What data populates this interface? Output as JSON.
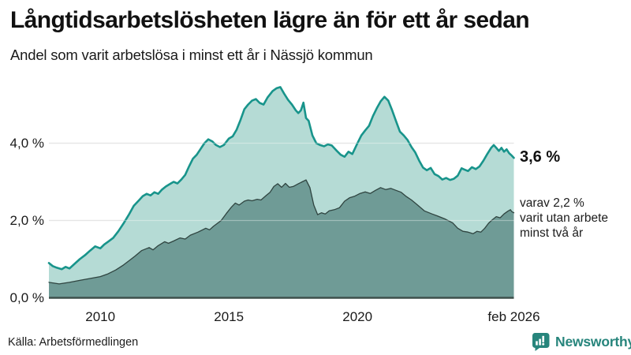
{
  "header": {
    "title": "Långtidsarbetslösheten lägre än för ett år sedan",
    "subtitle": "Andel som varit arbetslösa i minst ett år i Nässjö kommun"
  },
  "chart_data": {
    "type": "area",
    "title": "Långtidsarbetslösheten lägre än för ett år sedan",
    "subtitle": "Andel som varit arbetslösa i minst ett år i Nässjö kommun",
    "x_range": [
      2008.0,
      2026.083
    ],
    "ylim": [
      0,
      5.8
    ],
    "grid": "horizontal",
    "colors": {
      "line_1year": "#18948b",
      "fill_1year": "#b5dbd5",
      "line_2year": "#2f4440",
      "fill_2year": "#6f9b96",
      "gridline": "#d8d8d8",
      "baseline": "#3e504c"
    },
    "y_ticks": [
      {
        "label": "0,0 %",
        "value": 0
      },
      {
        "label": "2,0 %",
        "value": 2
      },
      {
        "label": "4,0 %",
        "value": 4
      }
    ],
    "x_ticks": [
      {
        "label": "2010",
        "year": 2010
      },
      {
        "label": "2015",
        "year": 2015
      },
      {
        "label": "2020",
        "year": 2020
      },
      {
        "label": "feb 2026",
        "year": 2026.083
      }
    ],
    "series": [
      {
        "name": "arbetslösa minst ett år",
        "last_value": 3.6,
        "points": [
          [
            2008.0,
            0.9
          ],
          [
            2008.15,
            0.82
          ],
          [
            2008.3,
            0.78
          ],
          [
            2008.5,
            0.74
          ],
          [
            2008.65,
            0.8
          ],
          [
            2008.8,
            0.76
          ],
          [
            2009.0,
            0.88
          ],
          [
            2009.2,
            1.0
          ],
          [
            2009.4,
            1.1
          ],
          [
            2009.6,
            1.22
          ],
          [
            2009.8,
            1.33
          ],
          [
            2010.0,
            1.28
          ],
          [
            2010.15,
            1.38
          ],
          [
            2010.3,
            1.45
          ],
          [
            2010.5,
            1.55
          ],
          [
            2010.7,
            1.72
          ],
          [
            2010.9,
            1.92
          ],
          [
            2011.1,
            2.14
          ],
          [
            2011.3,
            2.38
          ],
          [
            2011.5,
            2.52
          ],
          [
            2011.65,
            2.63
          ],
          [
            2011.8,
            2.69
          ],
          [
            2011.95,
            2.65
          ],
          [
            2012.1,
            2.73
          ],
          [
            2012.25,
            2.69
          ],
          [
            2012.4,
            2.8
          ],
          [
            2012.55,
            2.88
          ],
          [
            2012.7,
            2.94
          ],
          [
            2012.85,
            3.0
          ],
          [
            2013.0,
            2.96
          ],
          [
            2013.15,
            3.06
          ],
          [
            2013.3,
            3.18
          ],
          [
            2013.45,
            3.4
          ],
          [
            2013.6,
            3.6
          ],
          [
            2013.75,
            3.7
          ],
          [
            2013.9,
            3.85
          ],
          [
            2014.05,
            4.0
          ],
          [
            2014.2,
            4.1
          ],
          [
            2014.35,
            4.05
          ],
          [
            2014.5,
            3.95
          ],
          [
            2014.65,
            3.9
          ],
          [
            2014.8,
            3.95
          ],
          [
            2015.0,
            4.12
          ],
          [
            2015.15,
            4.18
          ],
          [
            2015.3,
            4.35
          ],
          [
            2015.45,
            4.6
          ],
          [
            2015.6,
            4.88
          ],
          [
            2015.75,
            5.0
          ],
          [
            2015.9,
            5.1
          ],
          [
            2016.05,
            5.14
          ],
          [
            2016.2,
            5.04
          ],
          [
            2016.35,
            5.0
          ],
          [
            2016.5,
            5.18
          ],
          [
            2016.7,
            5.35
          ],
          [
            2016.85,
            5.42
          ],
          [
            2017.0,
            5.45
          ],
          [
            2017.15,
            5.28
          ],
          [
            2017.3,
            5.12
          ],
          [
            2017.45,
            5.0
          ],
          [
            2017.6,
            4.85
          ],
          [
            2017.7,
            4.78
          ],
          [
            2017.8,
            4.85
          ],
          [
            2017.9,
            5.05
          ],
          [
            2018.0,
            4.65
          ],
          [
            2018.1,
            4.58
          ],
          [
            2018.25,
            4.2
          ],
          [
            2018.4,
            4.0
          ],
          [
            2018.55,
            3.95
          ],
          [
            2018.7,
            3.92
          ],
          [
            2018.85,
            3.97
          ],
          [
            2019.0,
            3.94
          ],
          [
            2019.2,
            3.8
          ],
          [
            2019.35,
            3.7
          ],
          [
            2019.5,
            3.65
          ],
          [
            2019.65,
            3.78
          ],
          [
            2019.8,
            3.72
          ],
          [
            2020.0,
            4.0
          ],
          [
            2020.15,
            4.2
          ],
          [
            2020.3,
            4.33
          ],
          [
            2020.45,
            4.45
          ],
          [
            2020.6,
            4.7
          ],
          [
            2020.75,
            4.9
          ],
          [
            2020.9,
            5.08
          ],
          [
            2021.05,
            5.2
          ],
          [
            2021.2,
            5.1
          ],
          [
            2021.35,
            4.85
          ],
          [
            2021.5,
            4.57
          ],
          [
            2021.65,
            4.3
          ],
          [
            2021.8,
            4.2
          ],
          [
            2021.95,
            4.08
          ],
          [
            2022.1,
            3.9
          ],
          [
            2022.25,
            3.76
          ],
          [
            2022.4,
            3.55
          ],
          [
            2022.55,
            3.37
          ],
          [
            2022.7,
            3.3
          ],
          [
            2022.85,
            3.36
          ],
          [
            2023.0,
            3.2
          ],
          [
            2023.15,
            3.15
          ],
          [
            2023.3,
            3.06
          ],
          [
            2023.45,
            3.1
          ],
          [
            2023.6,
            3.05
          ],
          [
            2023.75,
            3.08
          ],
          [
            2023.9,
            3.16
          ],
          [
            2024.05,
            3.35
          ],
          [
            2024.15,
            3.32
          ],
          [
            2024.3,
            3.28
          ],
          [
            2024.45,
            3.38
          ],
          [
            2024.6,
            3.33
          ],
          [
            2024.75,
            3.4
          ],
          [
            2024.9,
            3.55
          ],
          [
            2025.05,
            3.72
          ],
          [
            2025.2,
            3.88
          ],
          [
            2025.3,
            3.95
          ],
          [
            2025.4,
            3.88
          ],
          [
            2025.5,
            3.8
          ],
          [
            2025.6,
            3.88
          ],
          [
            2025.7,
            3.78
          ],
          [
            2025.8,
            3.84
          ],
          [
            2025.9,
            3.74
          ],
          [
            2026.0,
            3.68
          ],
          [
            2026.083,
            3.62
          ]
        ]
      },
      {
        "name": "varav utan arbete minst två år",
        "last_value": 2.2,
        "points": [
          [
            2008.0,
            0.4
          ],
          [
            2008.4,
            0.36
          ],
          [
            2008.8,
            0.4
          ],
          [
            2009.2,
            0.45
          ],
          [
            2009.6,
            0.5
          ],
          [
            2010.0,
            0.55
          ],
          [
            2010.3,
            0.62
          ],
          [
            2010.6,
            0.72
          ],
          [
            2010.9,
            0.85
          ],
          [
            2011.1,
            0.95
          ],
          [
            2011.35,
            1.08
          ],
          [
            2011.6,
            1.22
          ],
          [
            2011.9,
            1.3
          ],
          [
            2012.05,
            1.24
          ],
          [
            2012.25,
            1.35
          ],
          [
            2012.5,
            1.45
          ],
          [
            2012.65,
            1.41
          ],
          [
            2012.85,
            1.47
          ],
          [
            2013.1,
            1.55
          ],
          [
            2013.3,
            1.52
          ],
          [
            2013.5,
            1.62
          ],
          [
            2013.8,
            1.7
          ],
          [
            2014.1,
            1.8
          ],
          [
            2014.25,
            1.76
          ],
          [
            2014.4,
            1.85
          ],
          [
            2014.7,
            2.0
          ],
          [
            2014.9,
            2.18
          ],
          [
            2015.1,
            2.35
          ],
          [
            2015.25,
            2.45
          ],
          [
            2015.4,
            2.4
          ],
          [
            2015.6,
            2.5
          ],
          [
            2015.75,
            2.53
          ],
          [
            2015.9,
            2.51
          ],
          [
            2016.1,
            2.55
          ],
          [
            2016.25,
            2.53
          ],
          [
            2016.45,
            2.65
          ],
          [
            2016.6,
            2.73
          ],
          [
            2016.75,
            2.88
          ],
          [
            2016.9,
            2.95
          ],
          [
            2017.05,
            2.86
          ],
          [
            2017.2,
            2.96
          ],
          [
            2017.35,
            2.86
          ],
          [
            2017.5,
            2.88
          ],
          [
            2017.7,
            2.95
          ],
          [
            2017.85,
            3.0
          ],
          [
            2018.0,
            3.05
          ],
          [
            2018.15,
            2.85
          ],
          [
            2018.3,
            2.4
          ],
          [
            2018.45,
            2.15
          ],
          [
            2018.6,
            2.2
          ],
          [
            2018.75,
            2.17
          ],
          [
            2018.9,
            2.25
          ],
          [
            2019.1,
            2.28
          ],
          [
            2019.3,
            2.33
          ],
          [
            2019.5,
            2.5
          ],
          [
            2019.7,
            2.59
          ],
          [
            2019.9,
            2.63
          ],
          [
            2020.1,
            2.7
          ],
          [
            2020.3,
            2.74
          ],
          [
            2020.5,
            2.7
          ],
          [
            2020.7,
            2.78
          ],
          [
            2020.9,
            2.85
          ],
          [
            2021.1,
            2.8
          ],
          [
            2021.3,
            2.83
          ],
          [
            2021.5,
            2.78
          ],
          [
            2021.7,
            2.73
          ],
          [
            2021.9,
            2.62
          ],
          [
            2022.1,
            2.53
          ],
          [
            2022.3,
            2.42
          ],
          [
            2022.6,
            2.25
          ],
          [
            2022.9,
            2.17
          ],
          [
            2023.1,
            2.12
          ],
          [
            2023.4,
            2.04
          ],
          [
            2023.7,
            1.94
          ],
          [
            2023.9,
            1.8
          ],
          [
            2024.1,
            1.72
          ],
          [
            2024.3,
            1.7
          ],
          [
            2024.5,
            1.66
          ],
          [
            2024.65,
            1.72
          ],
          [
            2024.8,
            1.7
          ],
          [
            2024.95,
            1.8
          ],
          [
            2025.1,
            1.93
          ],
          [
            2025.25,
            2.02
          ],
          [
            2025.4,
            2.1
          ],
          [
            2025.55,
            2.07
          ],
          [
            2025.7,
            2.17
          ],
          [
            2025.85,
            2.24
          ],
          [
            2025.95,
            2.28
          ],
          [
            2026.0,
            2.23
          ],
          [
            2026.083,
            2.2
          ]
        ]
      }
    ],
    "end_labels": {
      "primary": "3,6 %",
      "secondary": "varav 2,2 %\nvarit utan arbete\nminst två år"
    },
    "legend_position": "none"
  },
  "footer": {
    "source": "Källa: Arbetsförmedlingen",
    "brand": "Newsworthy"
  }
}
